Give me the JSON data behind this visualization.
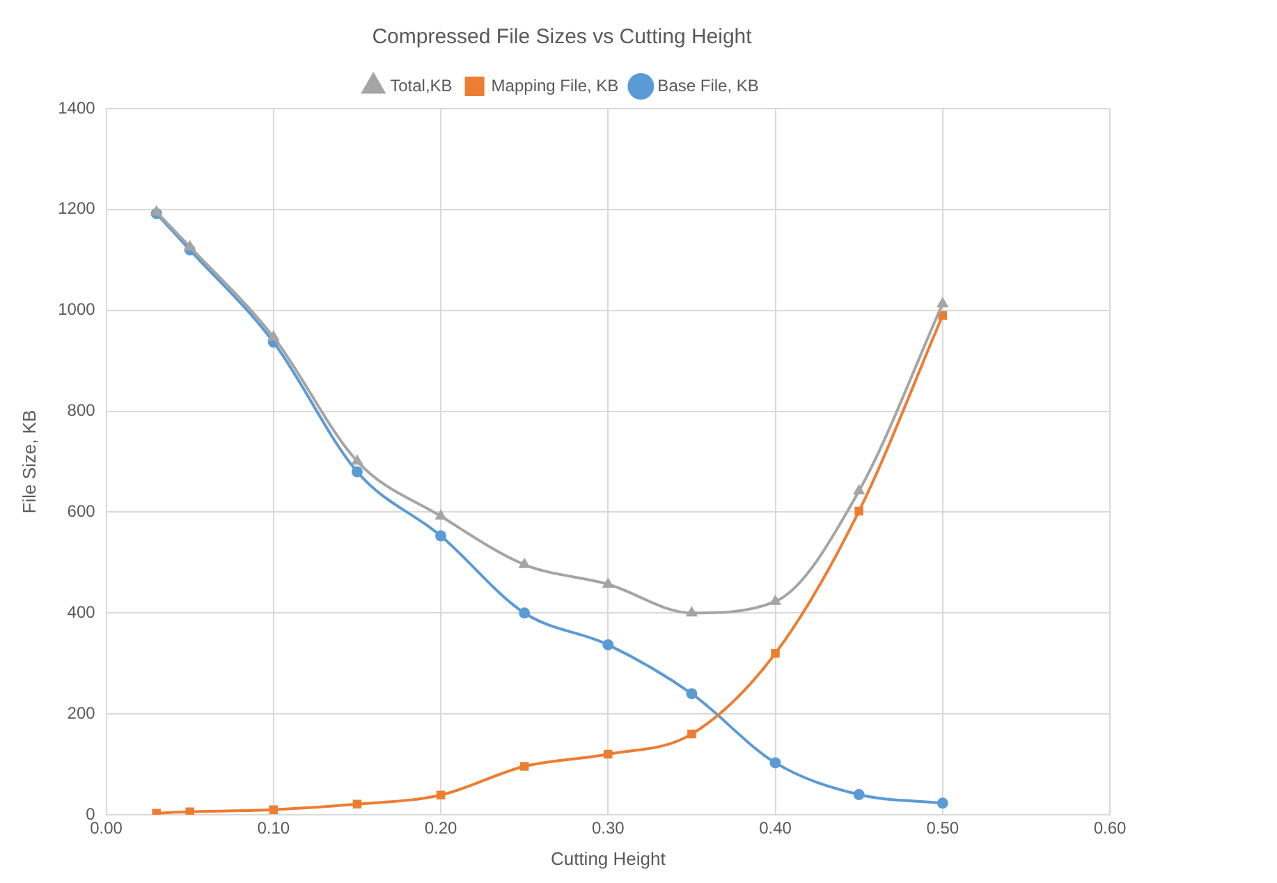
{
  "chart_data": {
    "type": "line",
    "title": "Compressed File Sizes vs Cutting Height",
    "xlabel": "Cutting Height",
    "ylabel": "File Size, KB",
    "x": [
      0.03,
      0.05,
      0.1,
      0.15,
      0.2,
      0.25,
      0.3,
      0.35,
      0.4,
      0.45,
      0.5
    ],
    "series": [
      {
        "name": "Base File, KB",
        "color": "#5b9bd5",
        "marker": "circle",
        "values": [
          1192,
          1120,
          937,
          680,
          553,
          400,
          337,
          240,
          103,
          40,
          23
        ]
      },
      {
        "name": "Mapping File, KB",
        "color": "#ed7d31",
        "marker": "square",
        "values": [
          3,
          6,
          10,
          21,
          39,
          96,
          120,
          160,
          320,
          602,
          990
        ]
      },
      {
        "name": "Total,KB",
        "color": "#a5a5a5",
        "marker": "triangle",
        "values": [
          1195,
          1126,
          947,
          701,
          592,
          496,
          457,
          400,
          423,
          642,
          1013
        ]
      }
    ],
    "xlim": [
      0,
      0.6
    ],
    "xticks": [
      {
        "value": 0,
        "label": "0.00"
      },
      {
        "value": 0.1,
        "label": "0.10"
      },
      {
        "value": 0.2,
        "label": "0.20"
      },
      {
        "value": 0.3,
        "label": "0.30"
      },
      {
        "value": 0.4,
        "label": "0.40"
      },
      {
        "value": 0.5,
        "label": "0.50"
      },
      {
        "value": 0.6,
        "label": "0.60"
      }
    ],
    "ylim": [
      0,
      1400
    ],
    "yticks": [
      0,
      200,
      400,
      600,
      800,
      1000,
      1200,
      1400
    ],
    "grid": true,
    "legend": "top",
    "line_style": "solid"
  }
}
